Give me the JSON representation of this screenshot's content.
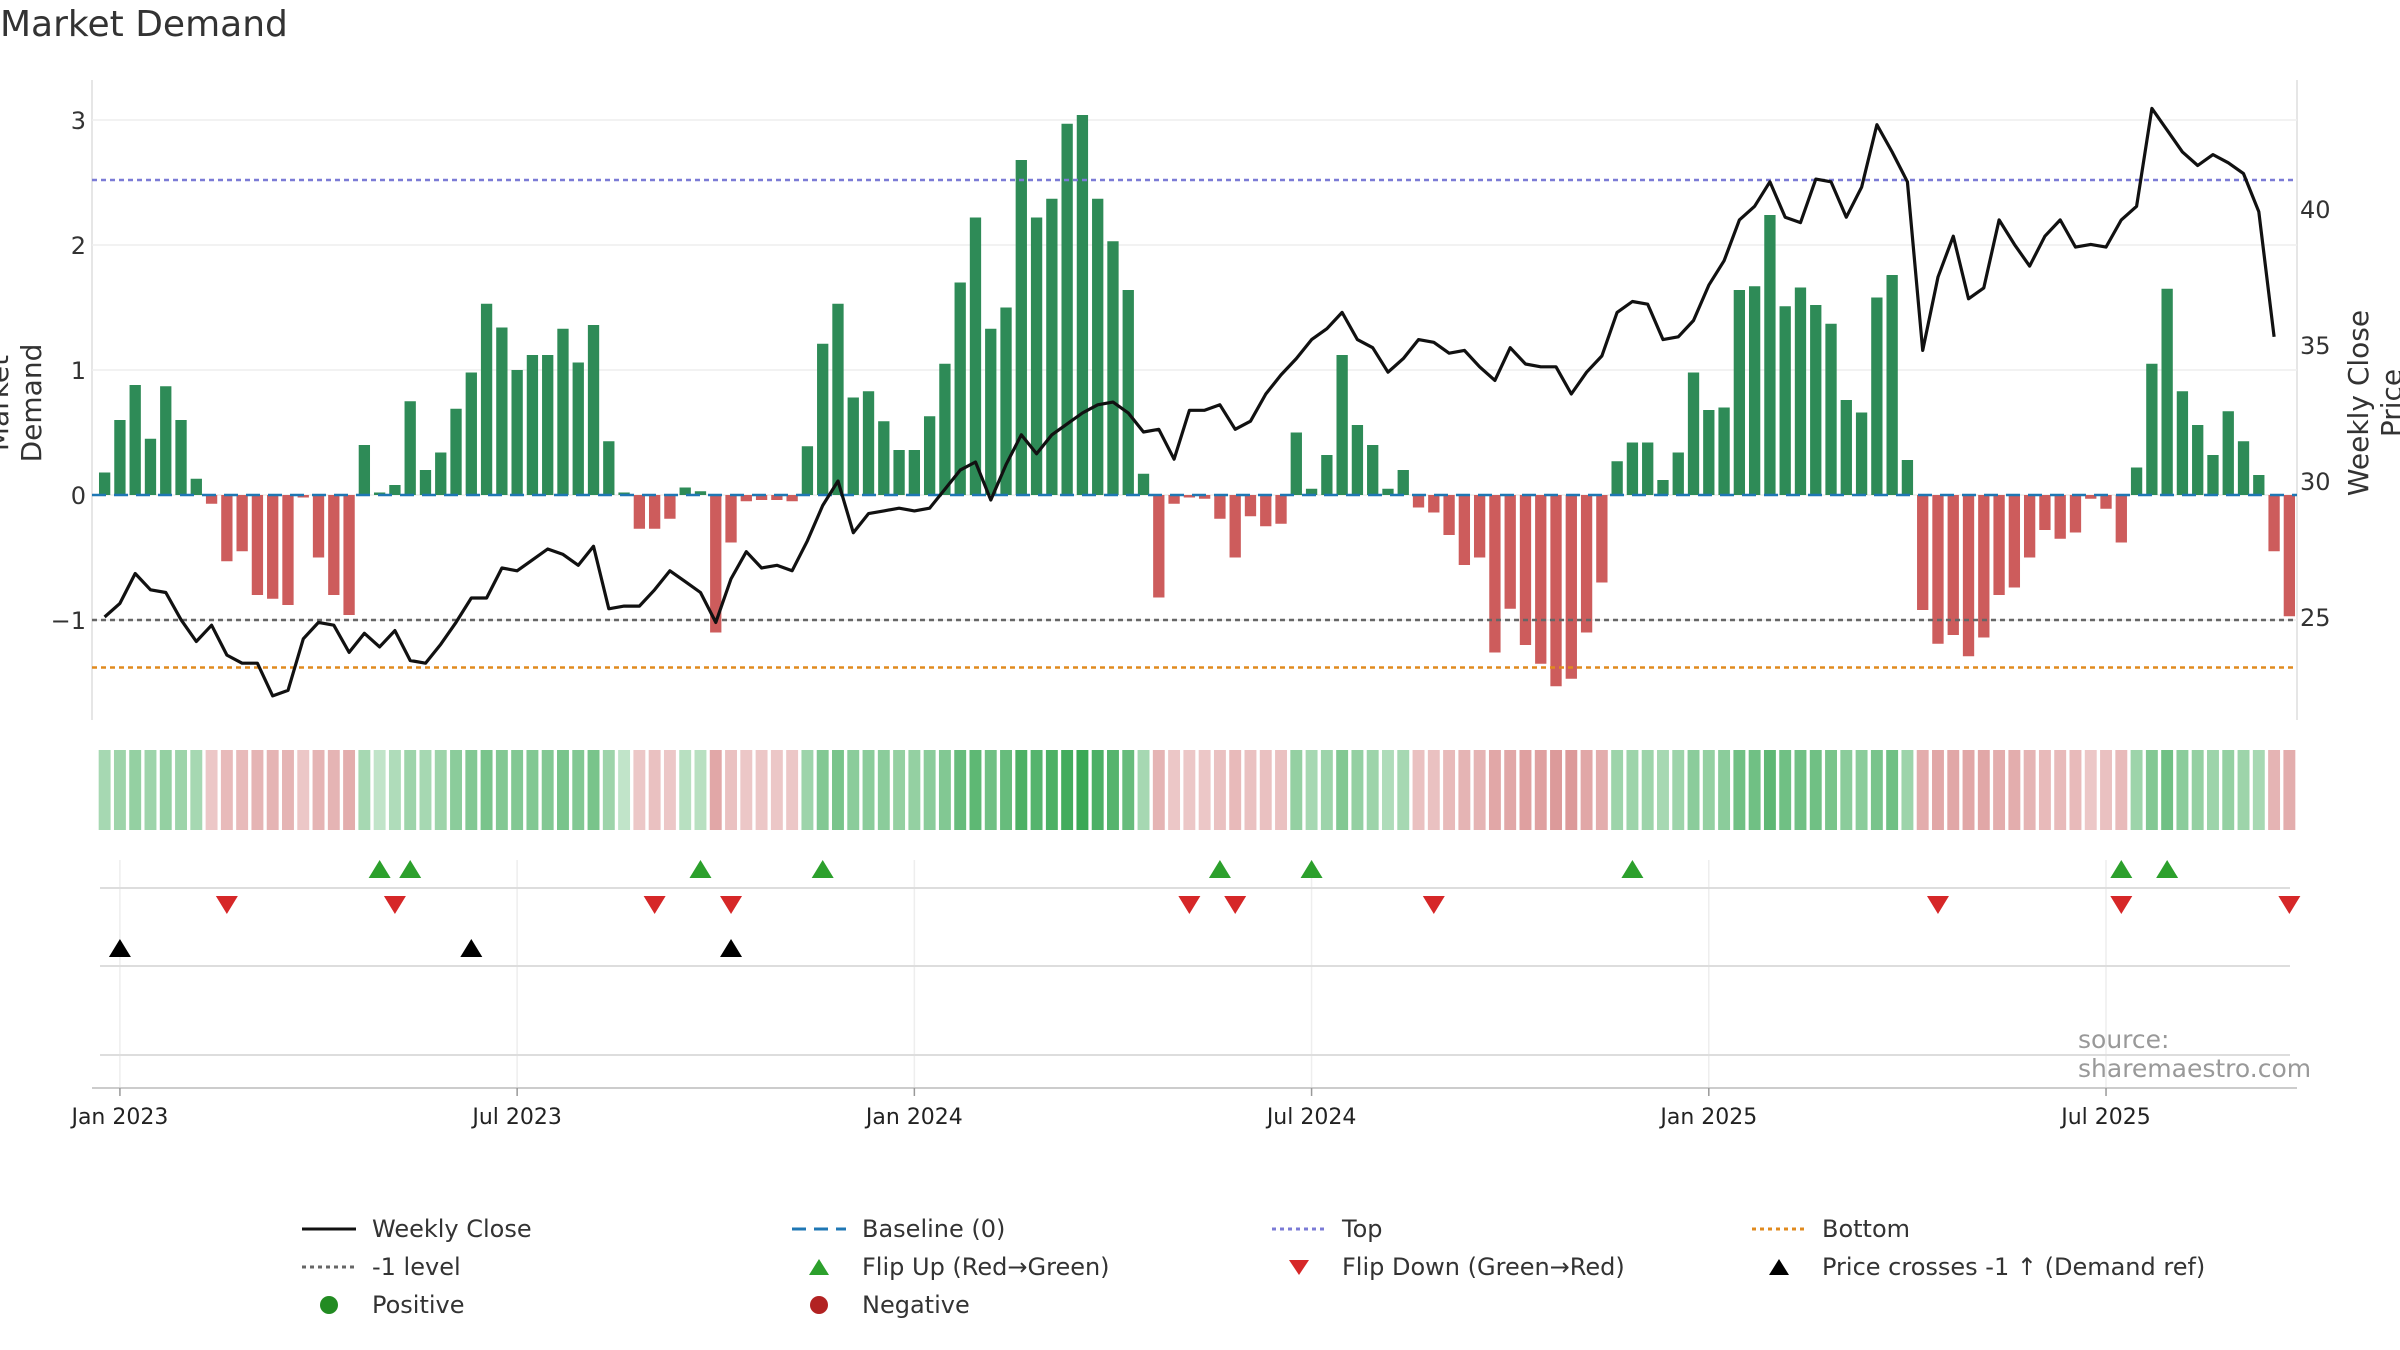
{
  "title": "Market Demand",
  "source": "source: sharemaestro.com",
  "colors": {
    "green": "#2e8b57",
    "red": "#cd5c5c",
    "top": "#7b7bd6",
    "bottom": "#e08a1e",
    "baseline": "#1f77b4",
    "level": "#666666",
    "close": "#111111",
    "flip_up": "#2ca02c",
    "flip_down": "#d62728"
  },
  "legend": [
    {
      "label": "Weekly Close",
      "key": "close"
    },
    {
      "label": "Baseline (0)",
      "key": "baseline"
    },
    {
      "label": "Top",
      "key": "top"
    },
    {
      "label": "Bottom",
      "key": "bottom"
    },
    {
      "label": "-1 level",
      "key": "level"
    },
    {
      "label": "Flip Up (Red→Green)",
      "key": "flip_up"
    },
    {
      "label": "Flip Down (Green→Red)",
      "key": "flip_down"
    },
    {
      "label": "Price crosses -1 ↑ (Demand ref)",
      "key": "cross"
    },
    {
      "label": "Positive",
      "key": "positive"
    },
    {
      "label": "Negative",
      "key": "negative"
    }
  ],
  "chart_data": {
    "type": "bar",
    "title": "Market Demand",
    "ylabel": "Market Demand",
    "y2label": "Weekly Close Price",
    "ylim": [
      -1.8,
      3.3
    ],
    "y2lim": [
      20.5,
      44.0
    ],
    "yticks": [
      -1,
      0,
      1,
      2,
      3
    ],
    "yticklabels": [
      "−1",
      "0",
      "1",
      "2",
      "3"
    ],
    "y2ticks": [
      25,
      30,
      35,
      40
    ],
    "x_tick_labels": [
      "Jan 2023",
      "Jul 2023",
      "Jan 2024",
      "Jul 2024",
      "Jan 2025",
      "Jul 2025"
    ],
    "x_tick_weeks": [
      1.5,
      27.5,
      53.5,
      79.5,
      105.5,
      131.5
    ],
    "top_level": 2.52,
    "bottom_level": -1.38,
    "minus_one_level": -1,
    "baseline": 0,
    "demand": [
      0.18,
      0.6,
      0.88,
      0.45,
      0.87,
      0.6,
      0.13,
      -0.07,
      -0.53,
      -0.45,
      -0.8,
      -0.83,
      -0.88,
      -0.02,
      -0.5,
      -0.8,
      -0.96,
      0.4,
      0.02,
      0.08,
      0.75,
      0.2,
      0.34,
      0.69,
      0.98,
      1.53,
      1.34,
      1.0,
      1.12,
      1.12,
      1.33,
      1.06,
      1.36,
      0.43,
      0.02,
      -0.27,
      -0.27,
      -0.19,
      0.06,
      0.03,
      -1.1,
      -0.38,
      -0.05,
      -0.04,
      -0.04,
      -0.05,
      0.39,
      1.21,
      1.53,
      0.78,
      0.83,
      0.59,
      0.36,
      0.36,
      0.63,
      1.05,
      1.7,
      2.22,
      1.33,
      1.5,
      2.68,
      2.22,
      2.37,
      2.97,
      3.04,
      2.37,
      2.03,
      1.64,
      0.17,
      -0.82,
      -0.07,
      -0.02,
      -0.03,
      -0.19,
      -0.5,
      -0.17,
      -0.25,
      -0.23,
      0.5,
      0.05,
      0.32,
      1.12,
      0.56,
      0.4,
      0.05,
      0.2,
      -0.1,
      -0.14,
      -0.32,
      -0.56,
      -0.5,
      -1.26,
      -0.91,
      -1.2,
      -1.35,
      -1.53,
      -1.47,
      -1.1,
      -0.7,
      0.27,
      0.42,
      0.42,
      0.12,
      0.34,
      0.98,
      0.68,
      0.7,
      1.64,
      1.67,
      2.24,
      1.51,
      1.66,
      1.52,
      1.37,
      0.76,
      0.66,
      1.58,
      1.76,
      0.28,
      -0.92,
      -1.19,
      -1.12,
      -1.29,
      -1.14,
      -0.8,
      -0.74,
      -0.5,
      -0.28,
      -0.35,
      -0.3,
      -0.03,
      -0.11,
      -0.38,
      0.22,
      1.05,
      1.65,
      0.83,
      0.56,
      0.32,
      0.67,
      0.43,
      0.16,
      -0.45,
      -0.97
    ],
    "weekly_close": [
      25.0,
      25.5,
      26.6,
      26.0,
      25.9,
      24.9,
      24.1,
      24.7,
      23.6,
      23.3,
      23.3,
      22.1,
      22.3,
      24.2,
      24.8,
      24.7,
      23.7,
      24.4,
      23.9,
      24.5,
      23.4,
      23.3,
      24.0,
      24.8,
      25.7,
      25.7,
      26.8,
      26.7,
      27.1,
      27.5,
      27.3,
      26.9,
      27.6,
      25.3,
      25.4,
      25.4,
      26.0,
      26.7,
      26.3,
      25.9,
      24.8,
      26.4,
      27.4,
      26.8,
      26.9,
      26.7,
      27.8,
      29.1,
      30.0,
      28.1,
      28.8,
      28.9,
      29.0,
      28.9,
      29.0,
      29.7,
      30.4,
      30.7,
      29.3,
      30.6,
      31.7,
      31.0,
      31.7,
      32.1,
      32.5,
      32.8,
      32.9,
      32.5,
      31.8,
      31.9,
      30.8,
      32.6,
      32.6,
      32.8,
      31.9,
      32.2,
      33.2,
      33.9,
      34.5,
      35.2,
      35.6,
      36.2,
      35.2,
      34.9,
      34.0,
      34.5,
      35.2,
      35.1,
      34.7,
      34.8,
      34.2,
      33.7,
      34.9,
      34.3,
      34.2,
      34.2,
      33.2,
      34.0,
      34.6,
      36.2,
      36.6,
      36.5,
      35.2,
      35.3,
      35.9,
      37.2,
      38.1,
      39.6,
      40.1,
      41.0,
      39.7,
      39.5,
      41.1,
      41.0,
      39.7,
      40.8,
      43.1,
      42.1,
      41.0,
      34.8,
      37.5,
      39.0,
      36.7,
      37.1,
      39.6,
      38.7,
      37.9,
      39.0,
      39.6,
      38.6,
      38.7,
      38.6,
      39.6,
      40.1,
      43.7,
      42.9,
      42.1,
      41.6,
      42.0,
      41.7,
      41.3,
      39.9,
      35.3
    ],
    "flip_up": [
      18,
      20,
      39,
      47,
      73,
      79,
      100,
      132,
      135
    ],
    "flip_down": [
      8,
      19,
      36,
      41,
      71,
      74,
      87,
      120,
      132,
      143
    ],
    "price_cross": [
      1.5,
      24.5,
      41.5
    ],
    "strength": [
      0.3,
      0.35,
      0.4,
      0.35,
      0.4,
      0.35,
      0.3,
      0.2,
      0.3,
      0.3,
      0.35,
      0.35,
      0.35,
      0.2,
      0.35,
      0.35,
      0.4,
      0.3,
      0.15,
      0.25,
      0.35,
      0.3,
      0.35,
      0.45,
      0.5,
      0.55,
      0.5,
      0.5,
      0.5,
      0.5,
      0.55,
      0.5,
      0.55,
      0.35,
      0.15,
      0.2,
      0.25,
      0.2,
      0.2,
      0.2,
      0.45,
      0.25,
      0.2,
      0.2,
      0.2,
      0.2,
      0.35,
      0.5,
      0.55,
      0.45,
      0.45,
      0.45,
      0.4,
      0.4,
      0.45,
      0.5,
      0.65,
      0.7,
      0.6,
      0.65,
      0.8,
      0.75,
      0.8,
      0.85,
      0.9,
      0.8,
      0.75,
      0.65,
      0.3,
      0.35,
      0.2,
      0.2,
      0.2,
      0.25,
      0.3,
      0.25,
      0.25,
      0.25,
      0.4,
      0.3,
      0.35,
      0.5,
      0.4,
      0.35,
      0.25,
      0.3,
      0.25,
      0.25,
      0.3,
      0.35,
      0.35,
      0.45,
      0.45,
      0.5,
      0.5,
      0.55,
      0.55,
      0.45,
      0.4,
      0.35,
      0.35,
      0.35,
      0.3,
      0.35,
      0.45,
      0.4,
      0.45,
      0.6,
      0.6,
      0.7,
      0.6,
      0.6,
      0.6,
      0.55,
      0.45,
      0.45,
      0.55,
      0.6,
      0.35,
      0.4,
      0.45,
      0.45,
      0.45,
      0.45,
      0.4,
      0.4,
      0.35,
      0.3,
      0.3,
      0.3,
      0.2,
      0.25,
      0.3,
      0.35,
      0.5,
      0.6,
      0.45,
      0.4,
      0.35,
      0.4,
      0.35,
      0.3,
      0.35,
      0.4
    ]
  }
}
